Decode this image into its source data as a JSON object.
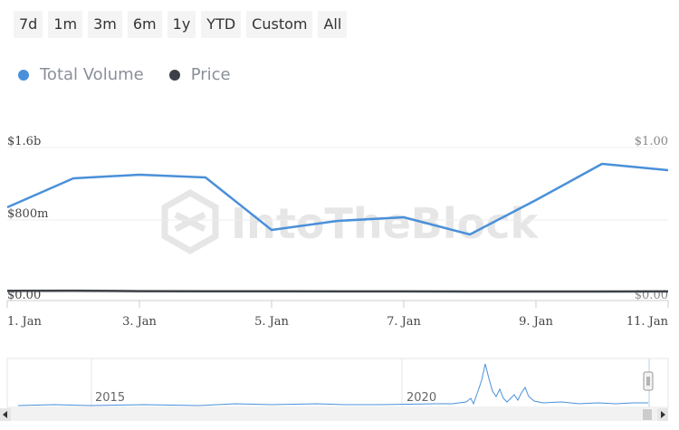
{
  "range_buttons": [
    "7d",
    "1m",
    "3m",
    "6m",
    "1y",
    "YTD",
    "Custom",
    "All"
  ],
  "legend": [
    {
      "label": "Total Volume",
      "color": "#4a90d9"
    },
    {
      "label": "Price",
      "color": "#3d4147"
    }
  ],
  "watermark": "IntoTheBlock",
  "navigator": {
    "year_labels": [
      "2015",
      "2020"
    ]
  },
  "chart_data": {
    "type": "line",
    "x": [
      "1. Jan",
      "2. Jan",
      "3. Jan",
      "4. Jan",
      "5. Jan",
      "6. Jan",
      "7. Jan",
      "8. Jan",
      "9. Jan",
      "10. Jan",
      "11. Jan"
    ],
    "x_tick_labels": [
      "1. Jan",
      "3. Jan",
      "5. Jan",
      "7. Jan",
      "9. Jan",
      "11. Jan"
    ],
    "series": [
      {
        "name": "Total Volume",
        "axis": "left",
        "color": "#4a90d9",
        "values": [
          0.94,
          1.26,
          1.3,
          1.27,
          0.69,
          0.79,
          0.83,
          0.64,
          1.02,
          1.42,
          1.35
        ]
      },
      {
        "name": "Price",
        "axis": "right",
        "color": "#3d4147",
        "values": [
          0.011,
          0.012,
          0.009,
          0.008,
          0.008,
          0.007,
          0.007,
          0.006,
          0.006,
          0.006,
          0.007
        ]
      }
    ],
    "left_axis": {
      "ylim": [
        0,
        1.6
      ],
      "tick_labels": [
        "$0.00",
        "$800m",
        "$1.6b"
      ],
      "tick_values": [
        0,
        0.8,
        1.6
      ],
      "unit": "billions"
    },
    "right_axis": {
      "ylim": [
        0,
        1.0
      ],
      "tick_labels": [
        "$0.00",
        "$1.00"
      ],
      "tick_values": [
        0,
        1.0
      ]
    },
    "grid": true,
    "legend_position": "top-left"
  }
}
